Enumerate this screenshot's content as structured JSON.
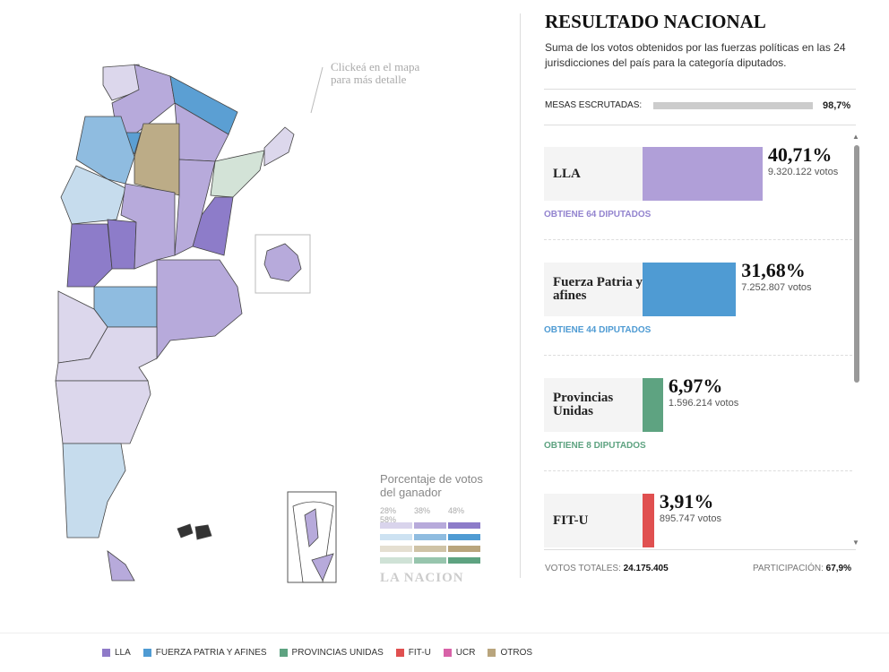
{
  "map": {
    "hint": "Clickeá en el mapa para más detalle",
    "legend_title": "Porcentaje de votos del ganador",
    "scale_ticks": [
      "28%",
      "38%",
      "48%",
      "58%"
    ],
    "brand": "LA NACION"
  },
  "results": {
    "title": "RESULTADO NACIONAL",
    "subtitle": "Suma de los votos obtenidos por las fuerzas políticas en las 24 jurisdicciones del país para la categoría diputados.",
    "mesas_label": "MESAS ESCRUTADAS:",
    "mesas_value": 98.7,
    "mesas_value_label": "98,7%",
    "parties": [
      {
        "name": "LLA",
        "percent": 40.71,
        "percent_label": "40,71%",
        "votes": "9.320.122 votos",
        "seats": "OBTIENE 64 DIPUTADOS",
        "color": "#b09fd8",
        "seats_color": "#9384cf"
      },
      {
        "name": "Fuerza Patria y afines",
        "percent": 31.68,
        "percent_label": "31,68%",
        "votes": "7.252.807 votos",
        "seats": "OBTIENE 44 DIPUTADOS",
        "color": "#4f9bd3",
        "seats_color": "#4f9bd3"
      },
      {
        "name": "Provincias Unidas",
        "percent": 6.97,
        "percent_label": "6,97%",
        "votes": "1.596.214 votos",
        "seats": "OBTIENE 8 DIPUTADOS",
        "color": "#5ea381",
        "seats_color": "#5ea381"
      },
      {
        "name": "FIT-U",
        "percent": 3.91,
        "percent_label": "3,91%",
        "votes": "895.747 votos",
        "color": "#e05050"
      }
    ],
    "total_label": "VOTOS TOTALES:",
    "total": "24.175.405",
    "participation_label": "PARTICIPACIÓN:",
    "participation": "67,9%"
  },
  "legend": [
    {
      "name": "LLA",
      "color": "#8f7ac8"
    },
    {
      "name": "FUERZA PATRIA Y AFINES",
      "color": "#4f9bd3"
    },
    {
      "name": "PROVINCIAS UNIDAS",
      "color": "#5ea381"
    },
    {
      "name": "FIT-U",
      "color": "#e05050"
    },
    {
      "name": "UCR",
      "color": "#d862a8"
    },
    {
      "name": "OTROS",
      "color": "#b9a57d"
    }
  ]
}
